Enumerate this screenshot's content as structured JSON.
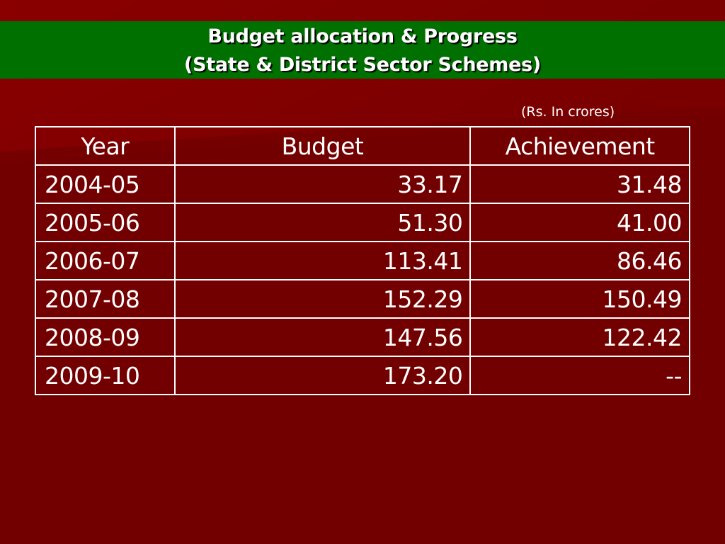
{
  "slide": {
    "title_line1": "Budget allocation & Progress",
    "title_line2": "(State & District Sector Schemes)",
    "unit_note": "(Rs. In crores)"
  },
  "colors": {
    "background": "#730000",
    "title_bar": "#007000",
    "text": "#ffffff"
  },
  "table": {
    "headers": [
      "Year",
      "Budget",
      "Achievement"
    ],
    "rows": [
      [
        "2004-05",
        "33.17",
        "31.48"
      ],
      [
        "2005-06",
        "51.30",
        "41.00"
      ],
      [
        "2006-07",
        "113.41",
        "86.46"
      ],
      [
        "2007-08",
        "152.29",
        "150.49"
      ],
      [
        "2008-09",
        "147.56",
        "122.42"
      ],
      [
        "2009-10",
        "173.20",
        "--"
      ]
    ]
  }
}
